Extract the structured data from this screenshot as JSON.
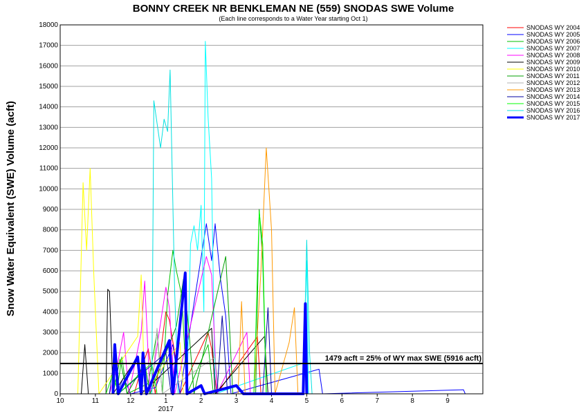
{
  "chart_data": {
    "type": "line",
    "title": "BONNY CREEK NR BENKLEMAN NE (559) SNODAS SWE Volume",
    "subtitle": "(Each line corresponds to a Water Year starting Oct 1)",
    "ylabel": "Snow Water Equivalent (SWE) Volume (acft)",
    "xlabel": "",
    "ylim": [
      0,
      18000
    ],
    "yticks": [
      0,
      1000,
      2000,
      3000,
      4000,
      5000,
      6000,
      7000,
      8000,
      9000,
      10000,
      11000,
      12000,
      13000,
      14000,
      15000,
      16000,
      17000,
      18000
    ],
    "xlim": [
      10,
      22
    ],
    "xticks": [
      {
        "x": 10,
        "label": "10"
      },
      {
        "x": 11,
        "label": "11"
      },
      {
        "x": 12,
        "label": "12"
      },
      {
        "x": 13,
        "label": "1"
      },
      {
        "x": 14,
        "label": "2"
      },
      {
        "x": 15,
        "label": "3"
      },
      {
        "x": 16,
        "label": "4"
      },
      {
        "x": 17,
        "label": "5"
      },
      {
        "x": 18,
        "label": "6"
      },
      {
        "x": 19,
        "label": "7"
      },
      {
        "x": 20,
        "label": "8"
      },
      {
        "x": 21,
        "label": "9"
      }
    ],
    "year_label": {
      "x": 13,
      "label": "2017"
    },
    "grid": "horizontal",
    "legend_position": "right",
    "reference_line": {
      "y": 1479,
      "label": "1479 acft = 25% of WY max SWE (5916 acft)"
    },
    "series": [
      {
        "name": "SNODAS WY 2004",
        "color": "#ff0000",
        "width": 1,
        "points": [
          [
            12.1,
            0
          ],
          [
            12.3,
            1200
          ],
          [
            12.5,
            2200
          ],
          [
            12.7,
            0
          ],
          [
            13.0,
            4000
          ],
          [
            13.1,
            3600
          ],
          [
            13.25,
            2000
          ],
          [
            13.4,
            0
          ],
          [
            14.2,
            3000
          ],
          [
            14.3,
            2200
          ],
          [
            14.45,
            0
          ],
          [
            15.6,
            2800
          ],
          [
            15.7,
            0
          ]
        ]
      },
      {
        "name": "SNODAS WY 2005",
        "color": "#0000ff",
        "width": 1,
        "points": [
          [
            11.6,
            0
          ],
          [
            11.8,
            800
          ],
          [
            12.0,
            0
          ],
          [
            12.7,
            300
          ],
          [
            13.2,
            2400
          ],
          [
            13.4,
            0
          ],
          [
            14.15,
            8300
          ],
          [
            14.3,
            6500
          ],
          [
            14.4,
            8300
          ],
          [
            14.55,
            5600
          ],
          [
            14.7,
            3800
          ],
          [
            14.85,
            0
          ],
          [
            17.35,
            1200
          ],
          [
            17.45,
            0
          ],
          [
            21.45,
            200
          ],
          [
            21.5,
            0
          ]
        ]
      },
      {
        "name": "SNODAS WY 2006",
        "color": "#00c000",
        "width": 1,
        "points": [
          [
            11.6,
            0
          ],
          [
            11.75,
            1800
          ],
          [
            11.9,
            0
          ],
          [
            12.5,
            500
          ],
          [
            12.75,
            3000
          ],
          [
            12.9,
            0
          ],
          [
            13.05,
            4800
          ],
          [
            13.2,
            7000
          ],
          [
            13.3,
            6000
          ],
          [
            13.45,
            4800
          ],
          [
            13.6,
            0
          ],
          [
            14.2,
            2400
          ],
          [
            14.35,
            0
          ]
        ]
      },
      {
        "name": "SNODAS WY 2007",
        "color": "#00ffff",
        "width": 1,
        "points": [
          [
            13.6,
            0
          ],
          [
            13.7,
            7300
          ],
          [
            13.8,
            8200
          ],
          [
            13.9,
            7000
          ],
          [
            14.0,
            9200
          ],
          [
            14.08,
            4000
          ],
          [
            14.12,
            17200
          ],
          [
            14.2,
            13500
          ],
          [
            14.3,
            10500
          ],
          [
            14.4,
            0
          ],
          [
            16.9,
            1500
          ],
          [
            17.0,
            6500
          ],
          [
            17.05,
            0
          ]
        ]
      },
      {
        "name": "SNODAS WY 2008",
        "color": "#ff00ff",
        "width": 1,
        "points": [
          [
            11.4,
            0
          ],
          [
            11.6,
            1200
          ],
          [
            11.8,
            3000
          ],
          [
            11.95,
            0
          ],
          [
            12.3,
            3000
          ],
          [
            12.4,
            5500
          ],
          [
            12.55,
            0
          ],
          [
            13.0,
            5200
          ],
          [
            13.1,
            4200
          ],
          [
            13.25,
            0
          ],
          [
            14.15,
            6700
          ],
          [
            14.3,
            5800
          ],
          [
            14.45,
            0
          ],
          [
            15.3,
            3000
          ],
          [
            15.4,
            0
          ]
        ]
      },
      {
        "name": "SNODAS WY 2009",
        "color": "#000000",
        "width": 1,
        "points": [
          [
            10.6,
            0
          ],
          [
            10.7,
            2400
          ],
          [
            10.8,
            0
          ],
          [
            11.3,
            0
          ],
          [
            11.35,
            5100
          ],
          [
            11.4,
            5000
          ],
          [
            11.5,
            0
          ],
          [
            12.2,
            1800
          ],
          [
            12.3,
            0
          ],
          [
            14.3,
            3200
          ],
          [
            14.4,
            0
          ],
          [
            15.8,
            2800
          ],
          [
            15.9,
            0
          ]
        ]
      },
      {
        "name": "SNODAS WY 2010",
        "color": "#ffff00",
        "width": 1,
        "points": [
          [
            10.5,
            0
          ],
          [
            10.65,
            10300
          ],
          [
            10.75,
            7000
          ],
          [
            10.85,
            11000
          ],
          [
            10.95,
            6000
          ],
          [
            11.1,
            0
          ],
          [
            12.2,
            2800
          ],
          [
            12.3,
            5800
          ],
          [
            12.4,
            0
          ],
          [
            13.4,
            2500
          ],
          [
            13.5,
            0
          ]
        ]
      },
      {
        "name": "SNODAS WY 2011",
        "color": "#00a000",
        "width": 1,
        "points": [
          [
            11.5,
            0
          ],
          [
            11.7,
            1700
          ],
          [
            11.9,
            0
          ],
          [
            12.4,
            1500
          ],
          [
            12.55,
            0
          ],
          [
            13.3,
            3300
          ],
          [
            13.5,
            5600
          ],
          [
            13.65,
            3200
          ],
          [
            13.8,
            0
          ],
          [
            14.7,
            6700
          ],
          [
            14.8,
            3500
          ],
          [
            14.9,
            0
          ],
          [
            15.55,
            0
          ],
          [
            15.65,
            9000
          ],
          [
            15.75,
            6500
          ],
          [
            15.85,
            0
          ]
        ]
      },
      {
        "name": "SNODAS WY 2012",
        "color": "#b0b0b0",
        "width": 1,
        "points": [
          [
            12.6,
            0
          ],
          [
            12.75,
            3200
          ],
          [
            12.9,
            0
          ],
          [
            14.4,
            1800
          ],
          [
            14.5,
            0
          ]
        ]
      },
      {
        "name": "SNODAS WY 2013",
        "color": "#ff9900",
        "width": 1,
        "points": [
          [
            15.05,
            0
          ],
          [
            15.15,
            4500
          ],
          [
            15.25,
            0
          ],
          [
            15.5,
            0
          ],
          [
            15.7,
            6000
          ],
          [
            15.85,
            12000
          ],
          [
            16.0,
            8000
          ],
          [
            16.1,
            0
          ],
          [
            16.5,
            2500
          ],
          [
            16.65,
            4200
          ],
          [
            16.75,
            0
          ]
        ]
      },
      {
        "name": "SNODAS WY 2014",
        "color": "#0000a0",
        "width": 1,
        "points": [
          [
            11.4,
            0
          ],
          [
            11.55,
            2000
          ],
          [
            11.65,
            0
          ],
          [
            13.0,
            2000
          ],
          [
            13.15,
            0
          ],
          [
            14.45,
            0
          ],
          [
            14.6,
            3800
          ],
          [
            14.75,
            0
          ],
          [
            15.75,
            0
          ],
          [
            15.9,
            4200
          ],
          [
            16.0,
            0
          ]
        ]
      },
      {
        "name": "SNODAS WY 2015",
        "color": "#00ff00",
        "width": 1,
        "points": [
          [
            11.3,
            0
          ],
          [
            11.5,
            1000
          ],
          [
            11.65,
            0
          ],
          [
            12.6,
            1500
          ],
          [
            12.75,
            0
          ],
          [
            15.5,
            0
          ],
          [
            15.65,
            8900
          ],
          [
            15.75,
            7300
          ],
          [
            15.85,
            0
          ]
        ]
      },
      {
        "name": "SNODAS WY 2016",
        "color": "#00e0e0",
        "width": 1,
        "points": [
          [
            12.6,
            0
          ],
          [
            12.66,
            14300
          ],
          [
            12.85,
            12000
          ],
          [
            12.95,
            13400
          ],
          [
            13.05,
            12800
          ],
          [
            13.12,
            15800
          ],
          [
            13.25,
            5000
          ],
          [
            13.35,
            0
          ],
          [
            16.9,
            0
          ],
          [
            17.0,
            7500
          ],
          [
            17.08,
            2000
          ],
          [
            17.15,
            0
          ]
        ]
      },
      {
        "name": "SNODAS WY 2017",
        "color": "#0000ff",
        "width": 4,
        "points": [
          [
            11.5,
            0
          ],
          [
            11.55,
            2400
          ],
          [
            11.65,
            0
          ],
          [
            12.2,
            1800
          ],
          [
            12.3,
            0
          ],
          [
            12.35,
            2000
          ],
          [
            12.45,
            0
          ],
          [
            13.1,
            2600
          ],
          [
            13.2,
            0
          ],
          [
            13.55,
            5900
          ],
          [
            13.6,
            0
          ],
          [
            14.0,
            400
          ],
          [
            14.1,
            0
          ],
          [
            15.0,
            400
          ],
          [
            15.2,
            0
          ],
          [
            16.9,
            0
          ],
          [
            16.96,
            4400
          ],
          [
            17.0,
            0
          ]
        ]
      }
    ]
  }
}
